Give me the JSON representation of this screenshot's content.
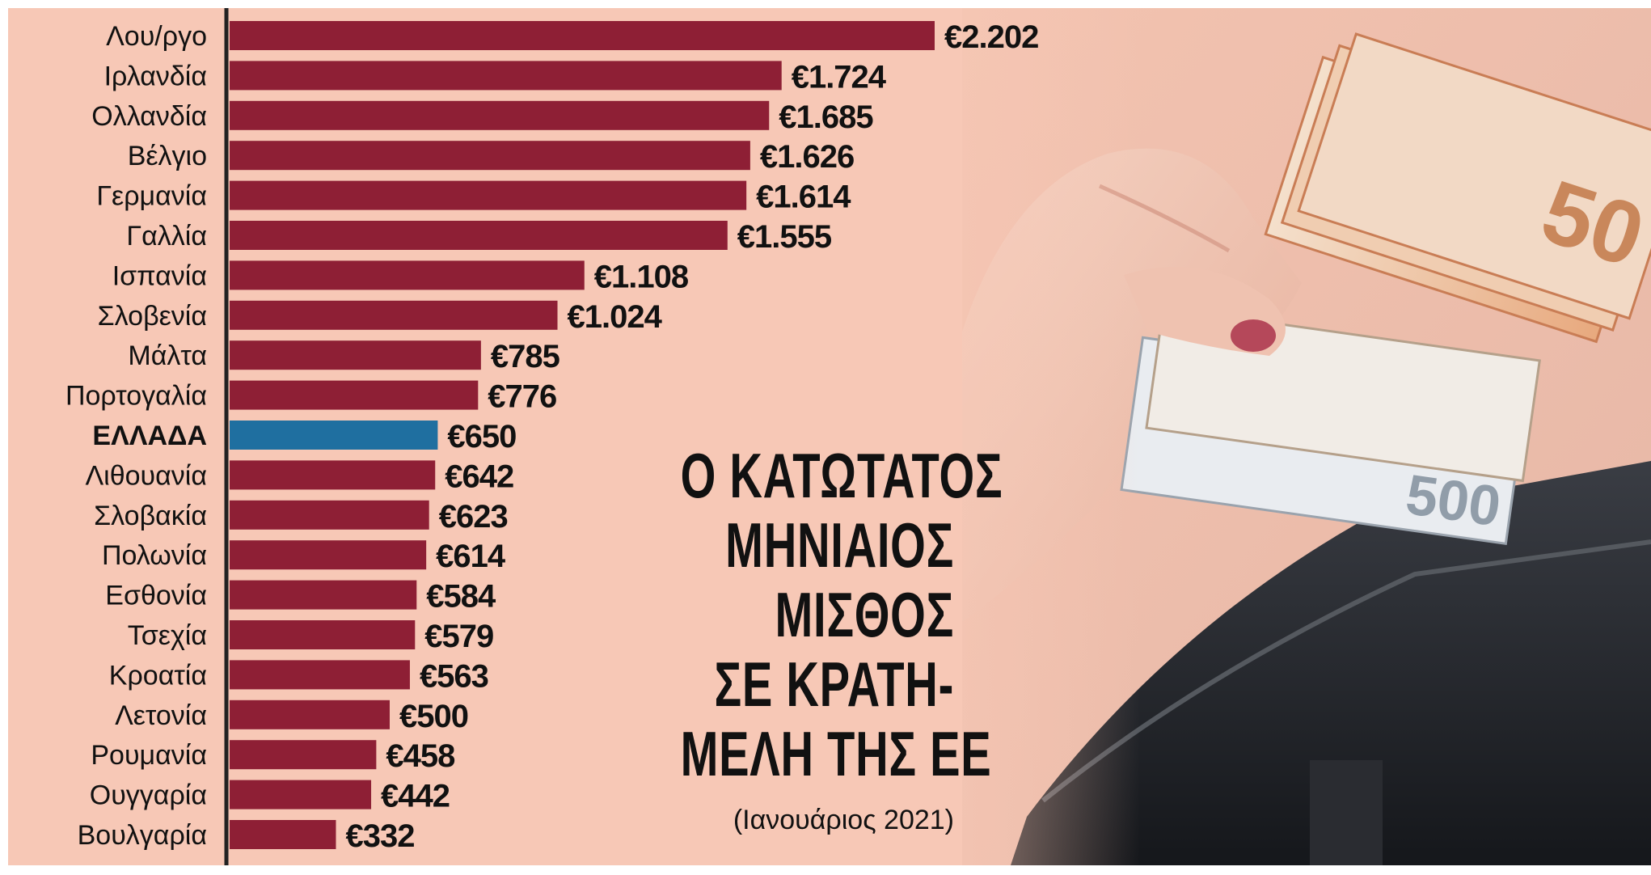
{
  "headline": {
    "lines": [
      "Ο ΚΑΤΩΤΑΤΟΣ",
      "ΜΗΝΙΑΙΟΣ",
      "ΜΙΣΘΟΣ",
      "ΣΕ ΚΡΑΤΗ-",
      "ΜΕΛΗ ΤΗΣ ΕΕ"
    ],
    "subtitle": "(Ιανουάριος 2021)"
  },
  "colors": {
    "background": "#f7c8b6",
    "bar": "#8e1f35",
    "highlight_bar": "#1f6fa0",
    "axis": "#222222"
  },
  "chart_data": {
    "type": "bar",
    "orientation": "horizontal",
    "title": "",
    "xlabel": "",
    "ylabel": "",
    "xlim": [
      0,
      2202
    ],
    "grid": false,
    "legend": "none",
    "highlight_category": "ΕΛΛΑΔΑ",
    "categories": [
      "Λου/ργο",
      "Ιρλανδία",
      "Ολλανδία",
      "Βέλγιο",
      "Γερμανία",
      "Γαλλία",
      "Ισπανία",
      "Σλοβενία",
      "Μάλτα",
      "Πορτογαλία",
      "ΕΛΛΑΔΑ",
      "Λιθουανία",
      "Σλοβακία",
      "Πολωνία",
      "Εσθονία",
      "Τσεχία",
      "Κροατία",
      "Λετονία",
      "Ρουμανία",
      "Ουγγαρία",
      "Βουλγαρία"
    ],
    "values": [
      2202,
      1724,
      1685,
      1626,
      1614,
      1555,
      1108,
      1024,
      785,
      776,
      650,
      642,
      623,
      614,
      584,
      579,
      563,
      500,
      458,
      442,
      332
    ],
    "value_labels": [
      "€2.202",
      "€1.724",
      "€1.685",
      "€1.626",
      "€1.614",
      "€1.555",
      "€1.108",
      "€1.024",
      "€785",
      "€776",
      "€650",
      "€642",
      "€623",
      "€614",
      "€584",
      "€579",
      "€563",
      "€500",
      "€458",
      "€442",
      "€332"
    ]
  }
}
